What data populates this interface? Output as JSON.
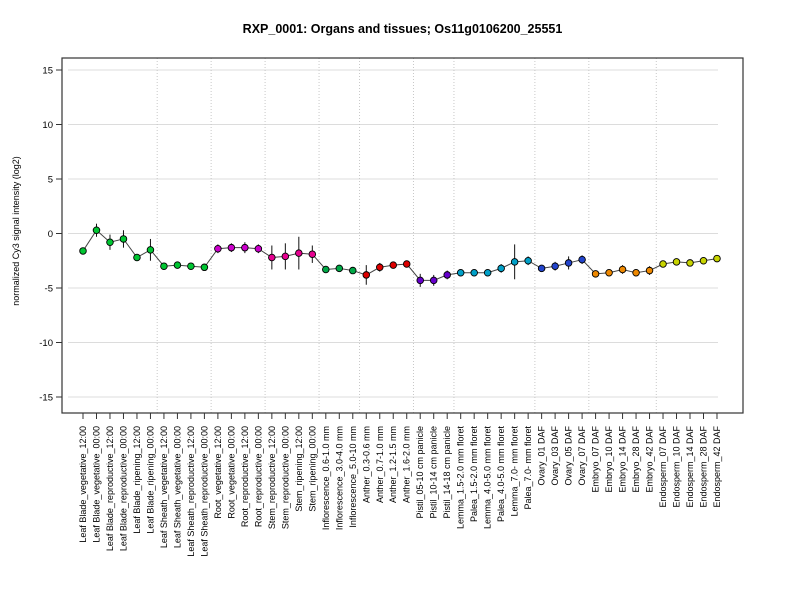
{
  "chart_data": {
    "type": "line",
    "title": "RXP_0001: Organs and tissues; Os11g0106200_25551",
    "xlabel": "",
    "ylabel": "normalized Cy3 signal intensity (log2)",
    "ylim": [
      -16.5,
      16.1
    ],
    "yticks": [
      15,
      10,
      5,
      0,
      -5,
      -10,
      -15
    ],
    "grid": "horizontal solid gridlines at each y tick; dotted vertical separators between organ groups",
    "legend": "none",
    "marker": "filled circle with black outline, connected by gray line, with error bars",
    "categories": [
      "Leaf Blade_vegetative_12:00",
      "Leaf Blade_vegetative_00:00",
      "Leaf Blade_reproductive_12:00",
      "Leaf Blade_reproductive_00:00",
      "Leaf Blade_ripening_12:00",
      "Leaf Blade_ripening_00:00",
      "Leaf Sheath_vegetative_12:00",
      "Leaf Sheath_vegetative_00:00",
      "Leaf Sheath_reproductive_12:00",
      "Leaf Sheath_reproductive_00:00",
      "Root_vegetative_12:00",
      "Root_vegetative_00:00",
      "Root_reproductive_12:00",
      "Root_reproductive_00:00",
      "Stem_reproductive_12:00",
      "Stem_reproductive_00:00",
      "Stem_ripening_12:00",
      "Stem_ripening_00:00",
      "Inflorescence_0.6-1.0 mm",
      "Inflorescence_3.0-4.0 mm",
      "Inflorescence_5.0-10 mm",
      "Anther_0.3-0.6 mm",
      "Anther_0.7-1.0 mm",
      "Anther_1.2-1.5 mm",
      "Anther_1.6-2.0 mm",
      "Pistil_05-10 cm panicle",
      "Pistil_10-14 cm panicle",
      "Pistil_14-18 cm panicle",
      "Lemma_1.5-2.0 mm floret",
      "Palea_1.5-2.0 mm floret",
      "Lemma_4.0-5.0 mm floret",
      "Palea_4.0-5.0 mm floret",
      "Lemma_7.0- mm floret",
      "Palea_7.0- mm floret",
      "Ovary_01 DAF",
      "Ovary_03 DAF",
      "Ovary_05 DAF",
      "Ovary_07 DAF",
      "Embryo_07 DAF",
      "Embryo_10 DAF",
      "Embryo_14 DAF",
      "Embryo_28 DAF",
      "Embryo_42 DAF",
      "Endosperm_07 DAF",
      "Endosperm_10 DAF",
      "Endosperm_14 DAF",
      "Endosperm_28 DAF",
      "Endosperm_42 DAF"
    ],
    "values": [
      -1.6,
      0.3,
      -0.8,
      -0.5,
      -2.2,
      -1.5,
      -3.0,
      -2.9,
      -3.0,
      -3.1,
      -1.4,
      -1.3,
      -1.3,
      -1.4,
      -2.2,
      -2.1,
      -1.8,
      -1.9,
      -3.3,
      -3.2,
      -3.4,
      -3.8,
      -3.1,
      -2.9,
      -2.8,
      -4.3,
      -4.3,
      -3.8,
      -3.6,
      -3.6,
      -3.6,
      -3.2,
      -2.6,
      -2.5,
      -3.2,
      -3.0,
      -2.7,
      -2.4,
      -3.7,
      -3.6,
      -3.3,
      -3.6,
      -3.4,
      -2.8,
      -2.6,
      -2.7,
      -2.5,
      -2.3
    ],
    "errors": [
      0.2,
      0.6,
      0.7,
      0.8,
      0.3,
      1.0,
      0.2,
      0.3,
      0.2,
      0.2,
      0.4,
      0.4,
      0.5,
      0.4,
      1.1,
      1.2,
      1.5,
      0.8,
      0.2,
      0.2,
      0.3,
      0.9,
      0.4,
      0.2,
      0.3,
      0.6,
      0.5,
      0.4,
      0.3,
      0.2,
      0.3,
      0.4,
      1.6,
      0.4,
      0.3,
      0.4,
      0.6,
      0.4,
      0.3,
      0.2,
      0.4,
      0.3,
      0.4,
      0.3,
      0.2,
      0.2,
      0.2,
      0.2
    ],
    "groups": [
      {
        "name": "Leaf Blade",
        "color": "#00C632",
        "count": 6
      },
      {
        "name": "Leaf Sheath",
        "color": "#00C632",
        "count": 4
      },
      {
        "name": "Root",
        "color": "#CC00CC",
        "count": 4
      },
      {
        "name": "Stem",
        "color": "#E60090",
        "count": 4
      },
      {
        "name": "Inflorescence",
        "color": "#00A846",
        "count": 3
      },
      {
        "name": "Anther",
        "color": "#DD0000",
        "count": 4
      },
      {
        "name": "Pistil",
        "color": "#6600CC",
        "count": 3
      },
      {
        "name": "Lemma/Palea",
        "color": "#00A0C8",
        "count": 6
      },
      {
        "name": "Ovary",
        "color": "#2244CC",
        "count": 4
      },
      {
        "name": "Embryo",
        "color": "#EE8800",
        "count": 5
      },
      {
        "name": "Endosperm",
        "color": "#C8D400",
        "count": 5
      }
    ],
    "style_colors": {
      "frame": "#333333",
      "gridline": "#DCDCDC",
      "separator": "#C8C8C8",
      "connector_line": "#444444",
      "error_bar": "#111111",
      "marker_outline": "#000000",
      "text": "#000000"
    }
  }
}
